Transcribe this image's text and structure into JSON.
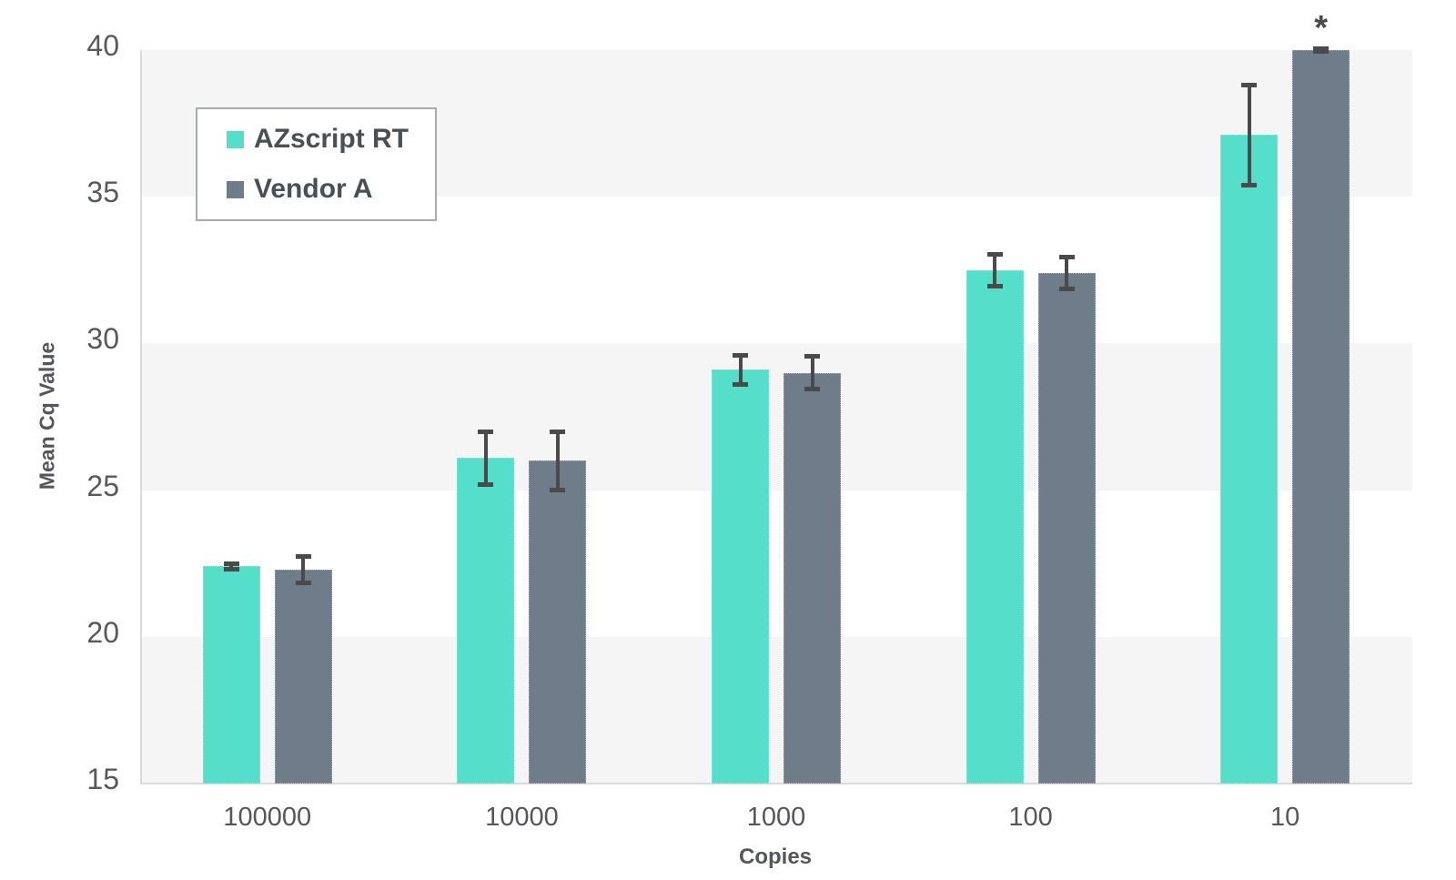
{
  "chart_data": {
    "type": "bar",
    "title": "",
    "xlabel": "Copies",
    "ylabel": "Mean Cq Value",
    "categories": [
      "100000",
      "10000",
      "1000",
      "100",
      "10"
    ],
    "series": [
      {
        "name": "AZscript RT",
        "color": "#55dfca",
        "values": [
          22.4,
          26.1,
          29.1,
          32.5,
          37.1
        ],
        "errors": [
          0.1,
          0.9,
          0.5,
          0.55,
          1.7
        ]
      },
      {
        "name": "Vendor A",
        "color": "#6f7c8a",
        "values": [
          22.3,
          26.0,
          29.0,
          32.4,
          40.0
        ],
        "errors": [
          0.45,
          1.0,
          0.55,
          0.55,
          0.05
        ]
      }
    ],
    "ylim": [
      15,
      40
    ],
    "yticks": [
      15,
      20,
      25,
      30,
      35,
      40
    ],
    "grid": "alternating-horizontal-bands",
    "band_color": "#f5f5f6",
    "legend_position": "top-left-inside",
    "annotation": {
      "text": "*",
      "series_index": 1,
      "category_index": 4
    }
  },
  "style_colors": {
    "error_bar": "#4a4a4a",
    "axis_line": "#dadadd",
    "tick_text": "#58595b",
    "axis_title_text": "#54565a",
    "legend_border": "#a8abae",
    "background": "#ffffff"
  }
}
